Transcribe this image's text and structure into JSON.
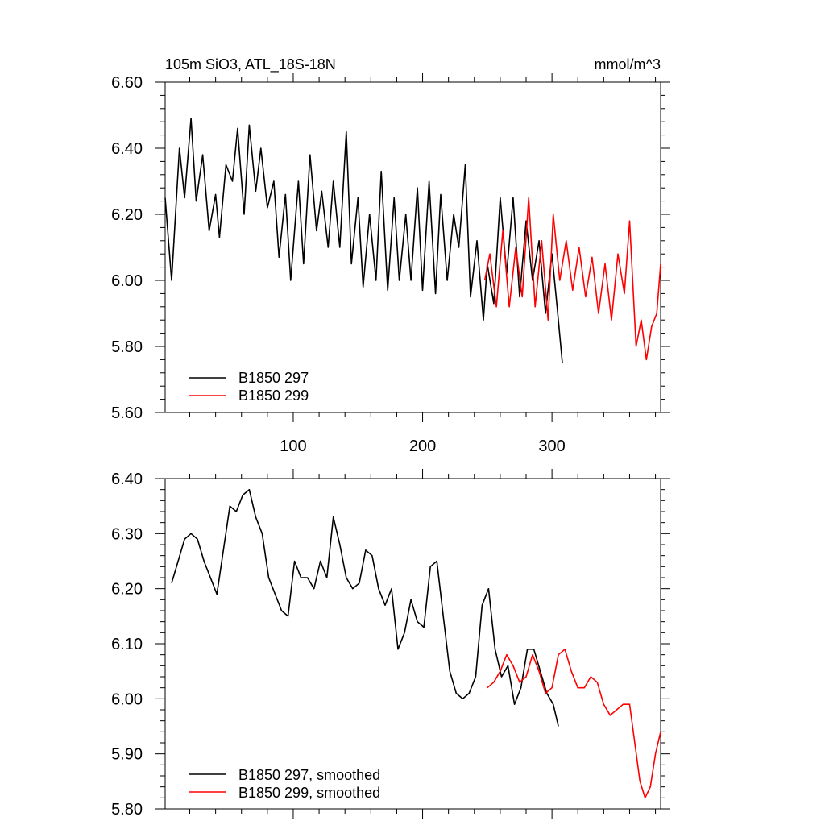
{
  "chart_data": [
    {
      "type": "line",
      "title": "105m SiO3, ATL_18S-18N",
      "units": "mmol/m^3",
      "xlim": [
        1,
        384
      ],
      "ylim": [
        5.6,
        6.6
      ],
      "yticks": [
        "5.60",
        "5.80",
        "6.00",
        "6.20",
        "6.40",
        "6.60"
      ],
      "xticks": [
        "100",
        "200",
        "300"
      ],
      "legend_placement": "bottom-left",
      "series": [
        {
          "name": "B1850 297",
          "color": "#000000",
          "x": [
            1,
            6,
            12,
            16,
            21,
            25,
            30,
            35,
            40,
            43,
            48,
            53,
            57,
            62,
            66,
            71,
            75,
            80,
            85,
            89,
            94,
            98,
            104,
            108,
            113,
            118,
            122,
            127,
            131,
            136,
            141,
            145,
            150,
            154,
            159,
            164,
            168,
            173,
            178,
            182,
            187,
            191,
            196,
            200,
            205,
            210,
            214,
            219,
            224,
            228,
            233,
            237,
            242,
            247,
            250,
            255,
            260,
            265,
            270,
            275,
            280,
            285,
            290,
            295,
            300,
            304,
            308
          ],
          "y": [
            6.25,
            6.0,
            6.4,
            6.25,
            6.49,
            6.24,
            6.38,
            6.15,
            6.26,
            6.13,
            6.35,
            6.3,
            6.46,
            6.2,
            6.47,
            6.27,
            6.4,
            6.22,
            6.3,
            6.07,
            6.26,
            6.0,
            6.3,
            6.05,
            6.38,
            6.15,
            6.27,
            6.1,
            6.3,
            6.1,
            6.45,
            6.05,
            6.25,
            5.98,
            6.2,
            6.0,
            6.33,
            5.97,
            6.25,
            6.0,
            6.2,
            6.0,
            6.28,
            5.97,
            6.3,
            5.96,
            6.26,
            6.0,
            6.2,
            6.1,
            6.35,
            5.95,
            6.12,
            5.88,
            6.05,
            5.93,
            6.25,
            6.02,
            6.25,
            5.95,
            6.18,
            6.0,
            6.12,
            5.9,
            6.08,
            5.92,
            5.75
          ]
        },
        {
          "name": "B1850 299",
          "color": "#ff0000",
          "x": [
            248,
            252,
            257,
            262,
            267,
            272,
            277,
            282,
            287,
            292,
            297,
            301,
            306,
            311,
            316,
            321,
            326,
            331,
            336,
            341,
            346,
            351,
            356,
            360,
            365,
            369,
            373,
            377,
            381,
            384
          ],
          "y": [
            6.0,
            6.08,
            5.92,
            6.15,
            5.92,
            6.1,
            5.95,
            6.25,
            5.92,
            6.12,
            5.88,
            6.2,
            6.0,
            6.12,
            5.97,
            6.1,
            5.95,
            6.07,
            5.9,
            6.05,
            5.88,
            6.08,
            5.96,
            6.18,
            5.8,
            5.88,
            5.76,
            5.86,
            5.9,
            6.05
          ]
        }
      ]
    },
    {
      "type": "line",
      "xlim": [
        1,
        384
      ],
      "ylim": [
        5.8,
        6.4
      ],
      "yticks": [
        "5.80",
        "5.90",
        "6.00",
        "6.10",
        "6.20",
        "6.30",
        "6.40"
      ],
      "legend_placement": "bottom-left",
      "series": [
        {
          "name": "B1850 297, smoothed",
          "color": "#000000",
          "x": [
            6,
            11,
            16,
            21,
            26,
            31,
            36,
            41,
            46,
            51,
            56,
            61,
            66,
            71,
            76,
            81,
            86,
            91,
            96,
            101,
            106,
            111,
            116,
            121,
            126,
            131,
            136,
            141,
            146,
            151,
            156,
            161,
            166,
            171,
            176,
            181,
            186,
            191,
            196,
            201,
            206,
            211,
            216,
            221,
            226,
            231,
            236,
            241,
            246,
            251,
            256,
            261,
            266,
            271,
            276,
            281,
            286,
            291,
            296,
            301,
            305
          ],
          "y": [
            6.21,
            6.25,
            6.29,
            6.3,
            6.29,
            6.25,
            6.22,
            6.19,
            6.27,
            6.35,
            6.34,
            6.37,
            6.38,
            6.33,
            6.3,
            6.22,
            6.19,
            6.16,
            6.15,
            6.25,
            6.22,
            6.22,
            6.2,
            6.25,
            6.22,
            6.33,
            6.28,
            6.22,
            6.2,
            6.21,
            6.27,
            6.26,
            6.2,
            6.17,
            6.2,
            6.09,
            6.12,
            6.18,
            6.14,
            6.13,
            6.24,
            6.25,
            6.15,
            6.05,
            6.01,
            6.0,
            6.01,
            6.04,
            6.17,
            6.2,
            6.09,
            6.04,
            6.06,
            5.99,
            6.02,
            6.09,
            6.09,
            6.05,
            6.01,
            5.99,
            5.95
          ]
        },
        {
          "name": "B1850 299, smoothed",
          "color": "#ff0000",
          "x": [
            250,
            255,
            260,
            265,
            270,
            275,
            280,
            285,
            290,
            295,
            300,
            305,
            310,
            315,
            320,
            325,
            330,
            335,
            340,
            345,
            350,
            355,
            360,
            364,
            368,
            372,
            376,
            380,
            384
          ],
          "y": [
            6.02,
            6.03,
            6.05,
            6.08,
            6.06,
            6.03,
            6.04,
            6.08,
            6.05,
            6.01,
            6.02,
            6.08,
            6.09,
            6.05,
            6.02,
            6.02,
            6.04,
            6.03,
            5.99,
            5.97,
            5.98,
            5.99,
            5.99,
            5.92,
            5.85,
            5.82,
            5.84,
            5.9,
            5.94
          ]
        }
      ]
    }
  ]
}
